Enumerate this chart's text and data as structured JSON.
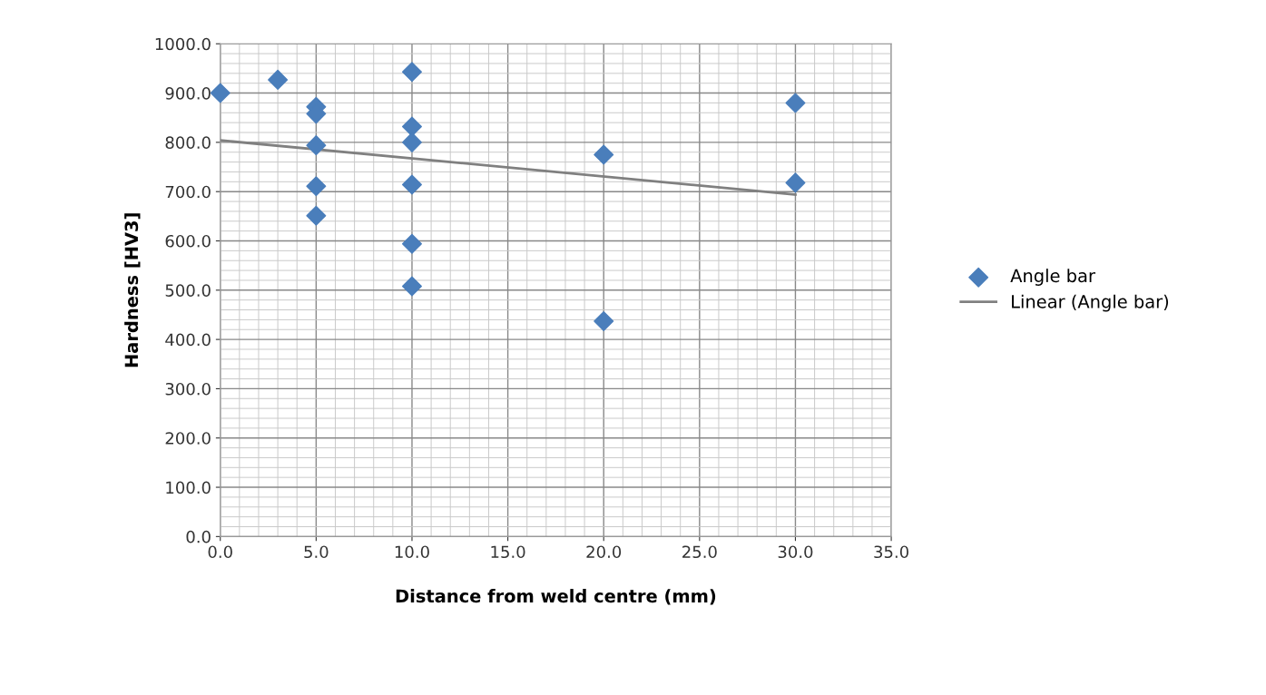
{
  "chart_data": {
    "type": "scatter",
    "xlabel": "Distance from weld centre (mm)",
    "ylabel": "Hardness [HV3]",
    "series": [
      {
        "name": "Angle bar",
        "color": "#4a7ebb",
        "marker": "diamond",
        "x": [
          0,
          3,
          5,
          5,
          5,
          5,
          5,
          10,
          10,
          10,
          10,
          10,
          10,
          20,
          20,
          30,
          30
        ],
        "values": [
          900,
          927,
          872,
          858,
          794,
          711,
          651,
          943,
          832,
          800,
          714,
          594,
          508,
          775,
          437,
          880,
          718
        ]
      },
      {
        "name": "Linear (Angle bar)",
        "type": "line",
        "color": "#808080",
        "marker": "none",
        "line_style": "solid",
        "x": [
          0,
          30
        ],
        "values": [
          804,
          694
        ]
      }
    ],
    "xlim": [
      0,
      35
    ],
    "xticks": [
      {
        "value": 0,
        "label": "0.0"
      },
      {
        "value": 5,
        "label": "5.0"
      },
      {
        "value": 10,
        "label": "10.0"
      },
      {
        "value": 15,
        "label": "15.0"
      },
      {
        "value": 20,
        "label": "20.0"
      },
      {
        "value": 25,
        "label": "25.0"
      },
      {
        "value": 30,
        "label": "30.0"
      },
      {
        "value": 35,
        "label": "35.0"
      }
    ],
    "ylim": [
      0,
      1000
    ],
    "yticks": [
      {
        "value": 0,
        "label": "0.0"
      },
      {
        "value": 100,
        "label": "100.0"
      },
      {
        "value": 200,
        "label": "200.0"
      },
      {
        "value": 300,
        "label": "300.0"
      },
      {
        "value": 400,
        "label": "400.0"
      },
      {
        "value": 500,
        "label": "500.0"
      },
      {
        "value": 600,
        "label": "600.0"
      },
      {
        "value": 700,
        "label": "700.0"
      },
      {
        "value": 800,
        "label": "800.0"
      },
      {
        "value": 900,
        "label": "900.0"
      },
      {
        "value": 1000,
        "label": "1000.0"
      }
    ],
    "grid": true,
    "legend": "right"
  }
}
